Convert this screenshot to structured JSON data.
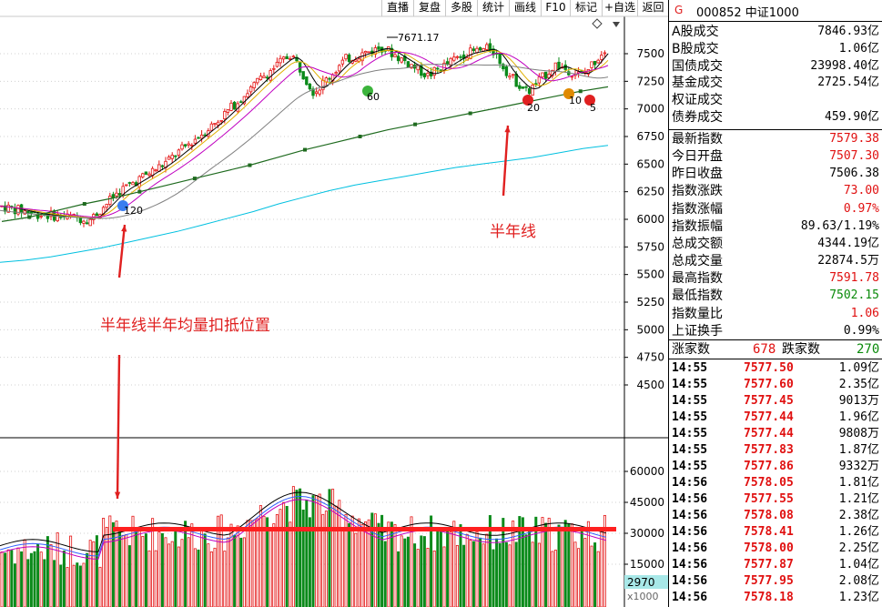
{
  "toolbar": {
    "buttons": [
      "直播",
      "复盘",
      "多股",
      "统计",
      "画线",
      "F10",
      "标记",
      "+自选",
      "返回"
    ]
  },
  "panel": {
    "marker": "G",
    "code_name": "000852 中证1000",
    "stats_a": [
      {
        "label": "A股成交",
        "value": "7846.93亿",
        "color": "black"
      },
      {
        "label": "B股成交",
        "value": "1.06亿",
        "color": "black"
      },
      {
        "label": "国债成交",
        "value": "23998.40亿",
        "color": "black"
      },
      {
        "label": "基金成交",
        "value": "2725.54亿",
        "color": "black"
      },
      {
        "label": "权证成交",
        "value": "",
        "color": "black"
      },
      {
        "label": "债券成交",
        "value": "459.90亿",
        "color": "black"
      }
    ],
    "stats_b": [
      {
        "label": "最新指数",
        "value": "7579.38",
        "color": "red"
      },
      {
        "label": "今日开盘",
        "value": "7507.30",
        "color": "red"
      },
      {
        "label": "昨日收盘",
        "value": "7506.38",
        "color": "black"
      },
      {
        "label": "指数涨跌",
        "value": "73.00",
        "color": "red"
      },
      {
        "label": "指数涨幅",
        "value": "0.97%",
        "color": "red"
      },
      {
        "label": "指数振幅",
        "value": "89.63/1.19%",
        "color": "black"
      },
      {
        "label": "总成交额",
        "value": "4344.19亿",
        "color": "black"
      },
      {
        "label": "总成交量",
        "value": "22874.5万",
        "color": "black"
      },
      {
        "label": "最高指数",
        "value": "7591.78",
        "color": "red"
      },
      {
        "label": "最低指数",
        "value": "7502.15",
        "color": "green"
      },
      {
        "label": "指数量比",
        "value": "1.06",
        "color": "red"
      },
      {
        "label": "上证换手",
        "value": "0.99%",
        "color": "black"
      }
    ],
    "breadth": {
      "up_label": "涨家数",
      "up_value": "678",
      "down_label": "跌家数",
      "down_value": "270"
    },
    "ticks": [
      {
        "time": "14:55",
        "price": "7577.50",
        "vol": "1.09亿"
      },
      {
        "time": "14:55",
        "price": "7577.60",
        "vol": "2.35亿"
      },
      {
        "time": "14:55",
        "price": "7577.45",
        "vol": "9013万"
      },
      {
        "time": "14:55",
        "price": "7577.44",
        "vol": "1.96亿"
      },
      {
        "time": "14:55",
        "price": "7577.44",
        "vol": "9808万"
      },
      {
        "time": "14:55",
        "price": "7577.83",
        "vol": "1.87亿"
      },
      {
        "time": "14:55",
        "price": "7577.86",
        "vol": "9332万"
      },
      {
        "time": "14:56",
        "price": "7578.05",
        "vol": "1.81亿"
      },
      {
        "time": "14:56",
        "price": "7577.55",
        "vol": "1.21亿"
      },
      {
        "time": "14:56",
        "price": "7578.08",
        "vol": "2.38亿"
      },
      {
        "time": "14:56",
        "price": "7578.41",
        "vol": "1.26亿"
      },
      {
        "time": "14:56",
        "price": "7578.00",
        "vol": "2.25亿"
      },
      {
        "time": "14:56",
        "price": "7577.87",
        "vol": "1.04亿"
      },
      {
        "time": "14:56",
        "price": "7577.95",
        "vol": "2.08亿"
      },
      {
        "time": "14:56",
        "price": "7578.18",
        "vol": "1.23亿"
      }
    ]
  },
  "chart_data": {
    "type": "candlestick",
    "price_axis": {
      "ticks": [
        "7500",
        "7250",
        "7000",
        "6750",
        "6500",
        "6250",
        "6000",
        "5750",
        "5500",
        "5250",
        "5000",
        "4750",
        "4500"
      ],
      "tick_values": [
        7500,
        7250,
        7000,
        6750,
        6500,
        6250,
        6000,
        5750,
        5500,
        5250,
        5000,
        4750,
        4500
      ]
    },
    "volume_axis": {
      "ticks": [
        "60000",
        "45000",
        "30000",
        "15000"
      ],
      "tick_values": [
        60000,
        45000,
        30000,
        15000
      ],
      "unit_label": "x1000",
      "current_label": "2970"
    },
    "price_annotation": "7671.17",
    "annotations": {
      "half_year_line": "半年线",
      "half_year_volume": "半年线半年均量扣抵位置"
    },
    "markers": [
      "120",
      "60",
      "20",
      "10",
      "5"
    ],
    "series": {
      "ma_half_year": [
        5980,
        6020,
        6080,
        6140,
        6190,
        6250,
        6310,
        6370,
        6430,
        6490,
        6560,
        6630,
        6690,
        6750,
        6810,
        6860,
        6910,
        6960,
        7010,
        7060,
        7110,
        7160,
        7200
      ],
      "ma_yearly": [
        5610,
        5630,
        5660,
        5700,
        5740,
        5790,
        5840,
        5890,
        5950,
        6010,
        6070,
        6140,
        6200,
        6260,
        6310,
        6350,
        6390,
        6430,
        6470,
        6500,
        6530,
        6560,
        6600,
        6640,
        6670
      ]
    },
    "volume_line_value": 32000
  }
}
